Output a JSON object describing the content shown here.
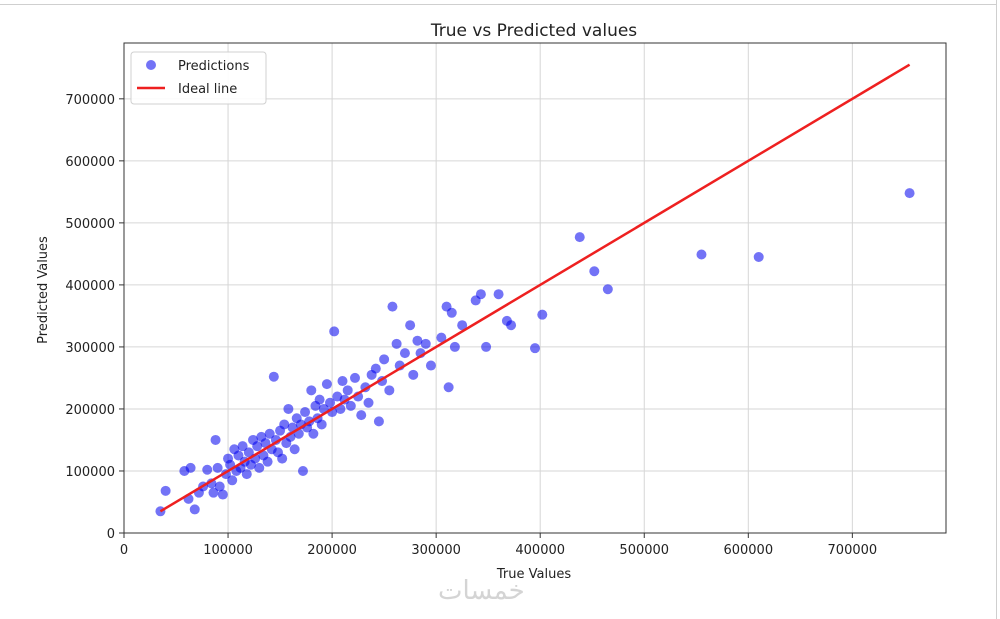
{
  "chart_data": {
    "type": "scatter",
    "title": "True vs Predicted values",
    "xlabel": "True Values",
    "ylabel": "Predicted Values",
    "xlim": [
      0,
      790000
    ],
    "ylim": [
      0,
      790000
    ],
    "xticks": [
      0,
      100000,
      200000,
      300000,
      400000,
      500000,
      600000,
      700000
    ],
    "yticks": [
      0,
      100000,
      200000,
      300000,
      400000,
      500000,
      600000,
      700000
    ],
    "xtick_labels": [
      "0",
      "100000",
      "200000",
      "300000",
      "400000",
      "500000",
      "600000",
      "700000"
    ],
    "ytick_labels": [
      "0",
      "100000",
      "200000",
      "300000",
      "400000",
      "500000",
      "600000",
      "700000"
    ],
    "grid": true,
    "legend_position": "top-left",
    "series": [
      {
        "name": "Predictions",
        "kind": "scatter",
        "color": "#0000ee",
        "points": [
          [
            35000,
            35000
          ],
          [
            40000,
            68000
          ],
          [
            58000,
            100000
          ],
          [
            62000,
            55000
          ],
          [
            64000,
            105000
          ],
          [
            68000,
            38000
          ],
          [
            72000,
            65000
          ],
          [
            76000,
            75000
          ],
          [
            80000,
            102000
          ],
          [
            84000,
            80000
          ],
          [
            86000,
            65000
          ],
          [
            88000,
            150000
          ],
          [
            90000,
            105000
          ],
          [
            92000,
            75000
          ],
          [
            95000,
            62000
          ],
          [
            98000,
            95000
          ],
          [
            100000,
            120000
          ],
          [
            102000,
            110000
          ],
          [
            104000,
            85000
          ],
          [
            106000,
            135000
          ],
          [
            108000,
            100000
          ],
          [
            110000,
            125000
          ],
          [
            112000,
            105000
          ],
          [
            114000,
            140000
          ],
          [
            116000,
            115000
          ],
          [
            118000,
            95000
          ],
          [
            120000,
            130000
          ],
          [
            122000,
            110000
          ],
          [
            124000,
            150000
          ],
          [
            126000,
            120000
          ],
          [
            128000,
            140000
          ],
          [
            130000,
            105000
          ],
          [
            132000,
            155000
          ],
          [
            134000,
            125000
          ],
          [
            136000,
            145000
          ],
          [
            138000,
            115000
          ],
          [
            140000,
            160000
          ],
          [
            142000,
            135000
          ],
          [
            144000,
            252000
          ],
          [
            146000,
            150000
          ],
          [
            148000,
            130000
          ],
          [
            150000,
            165000
          ],
          [
            152000,
            120000
          ],
          [
            154000,
            175000
          ],
          [
            156000,
            145000
          ],
          [
            158000,
            200000
          ],
          [
            160000,
            155000
          ],
          [
            162000,
            170000
          ],
          [
            164000,
            135000
          ],
          [
            166000,
            185000
          ],
          [
            168000,
            160000
          ],
          [
            170000,
            175000
          ],
          [
            172000,
            100000
          ],
          [
            174000,
            195000
          ],
          [
            176000,
            170000
          ],
          [
            178000,
            180000
          ],
          [
            180000,
            230000
          ],
          [
            182000,
            160000
          ],
          [
            184000,
            205000
          ],
          [
            186000,
            185000
          ],
          [
            188000,
            215000
          ],
          [
            190000,
            175000
          ],
          [
            192000,
            200000
          ],
          [
            195000,
            240000
          ],
          [
            198000,
            210000
          ],
          [
            200000,
            195000
          ],
          [
            202000,
            325000
          ],
          [
            205000,
            220000
          ],
          [
            208000,
            200000
          ],
          [
            210000,
            245000
          ],
          [
            212000,
            215000
          ],
          [
            215000,
            230000
          ],
          [
            218000,
            205000
          ],
          [
            222000,
            250000
          ],
          [
            225000,
            220000
          ],
          [
            228000,
            190000
          ],
          [
            232000,
            235000
          ],
          [
            235000,
            210000
          ],
          [
            238000,
            255000
          ],
          [
            242000,
            265000
          ],
          [
            245000,
            180000
          ],
          [
            248000,
            245000
          ],
          [
            250000,
            280000
          ],
          [
            255000,
            230000
          ],
          [
            258000,
            365000
          ],
          [
            262000,
            305000
          ],
          [
            265000,
            270000
          ],
          [
            270000,
            290000
          ],
          [
            275000,
            335000
          ],
          [
            278000,
            255000
          ],
          [
            282000,
            310000
          ],
          [
            285000,
            290000
          ],
          [
            290000,
            305000
          ],
          [
            295000,
            270000
          ],
          [
            305000,
            315000
          ],
          [
            310000,
            365000
          ],
          [
            312000,
            235000
          ],
          [
            315000,
            355000
          ],
          [
            318000,
            300000
          ],
          [
            325000,
            335000
          ],
          [
            338000,
            375000
          ],
          [
            343000,
            385000
          ],
          [
            348000,
            300000
          ],
          [
            360000,
            385000
          ],
          [
            368000,
            342000
          ],
          [
            372000,
            335000
          ],
          [
            395000,
            298000
          ],
          [
            402000,
            352000
          ],
          [
            438000,
            477000
          ],
          [
            452000,
            422000
          ],
          [
            465000,
            393000
          ],
          [
            555000,
            449000
          ],
          [
            610000,
            445000
          ],
          [
            755000,
            548000
          ]
        ]
      },
      {
        "name": "Ideal line",
        "kind": "line",
        "color": "#ee2020",
        "x": [
          35000,
          755000
        ],
        "y": [
          35000,
          755000
        ]
      }
    ]
  }
}
